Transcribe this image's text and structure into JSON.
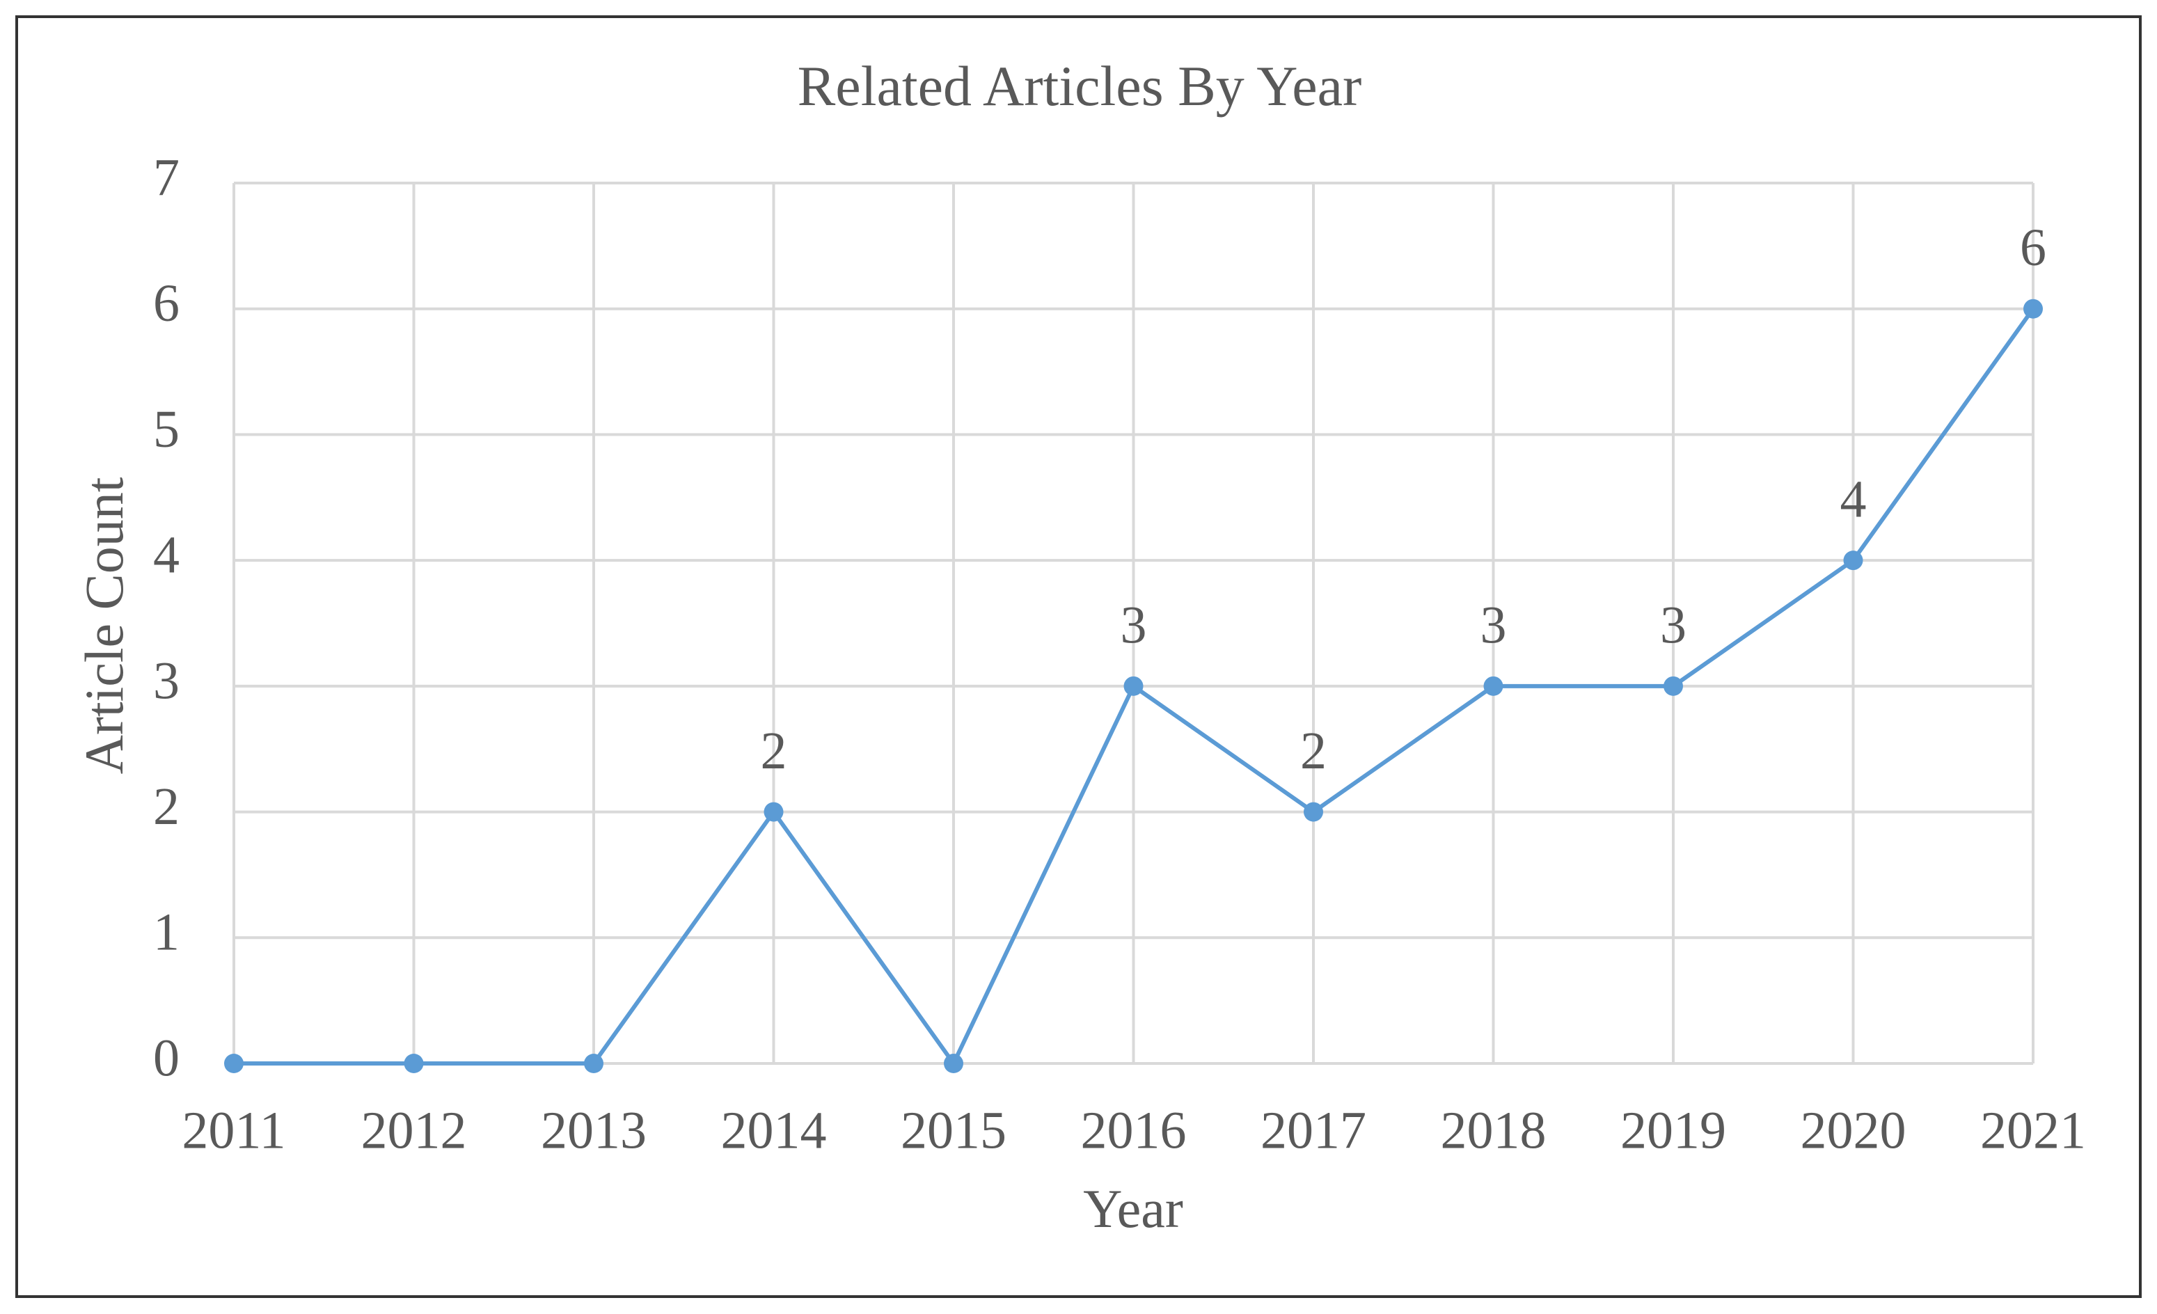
{
  "chart_data": {
    "type": "line",
    "title": "Related Articles By Year",
    "x_label": "Year",
    "y_label": "Article Count",
    "x": [
      2011,
      2012,
      2013,
      2014,
      2015,
      2016,
      2017,
      2018,
      2019,
      2020,
      2021
    ],
    "values": [
      0,
      0,
      0,
      2,
      0,
      3,
      2,
      3,
      3,
      4,
      6
    ],
    "value_labels": [
      null,
      null,
      null,
      "2",
      null,
      "3",
      "2",
      "3",
      "3",
      "4",
      "6"
    ],
    "color": "#5b9bd5",
    "xlim": [
      2011,
      2021
    ],
    "xticks": [
      2011,
      2012,
      2013,
      2014,
      2015,
      2016,
      2017,
      2018,
      2019,
      2020,
      2021
    ],
    "ylim": [
      0,
      7
    ],
    "yticks": [
      0,
      1,
      2,
      3,
      4,
      5,
      6,
      7
    ],
    "grid": true
  }
}
